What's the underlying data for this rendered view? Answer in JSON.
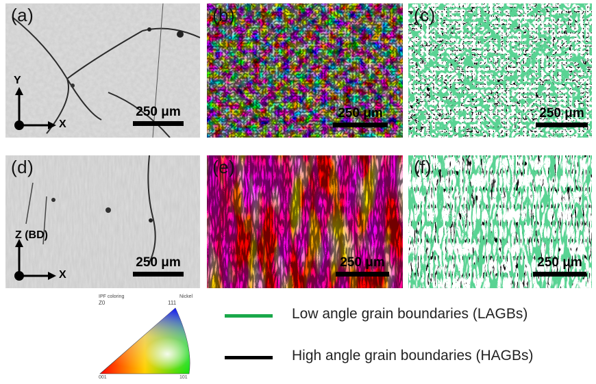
{
  "panels": {
    "a": {
      "label": "(a)",
      "scalebar": "250 μm",
      "axis_vertical": "Y",
      "axis_horizontal": "X"
    },
    "b": {
      "label": "(b)",
      "scalebar": "250 μm"
    },
    "c": {
      "label": "(c)",
      "scalebar": "250 μm"
    },
    "d": {
      "label": "(d)",
      "scalebar": "250 μm",
      "axis_vertical": "Z (BD)",
      "axis_horizontal": "X"
    },
    "e": {
      "label": "(e)",
      "scalebar": "250 μm"
    },
    "f": {
      "label": "(f)",
      "scalebar": "250 μm"
    }
  },
  "ipf_key": {
    "header_left": "IPF coloring",
    "header_right": "Nickel",
    "header_sub": "Z0",
    "corner_001": "001",
    "corner_101": "101",
    "corner_111": "111"
  },
  "legend": [
    {
      "label": "Low angle grain boundaries (LAGBs)",
      "color": "#1aa84a"
    },
    {
      "label": "High angle grain boundaries (HAGBs)",
      "color": "#000000"
    }
  ],
  "colors": {
    "optical_bg": "#c9c9c9",
    "ipf_red": "#e8251e",
    "ipf_green": "#2fd12f",
    "ipf_blue": "#2a3de0",
    "lagb": "#1aa84a",
    "hagb": "#000000"
  }
}
